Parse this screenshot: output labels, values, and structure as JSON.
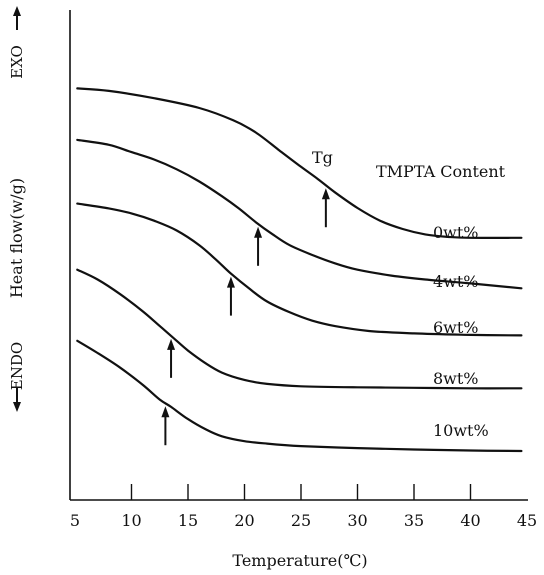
{
  "chart_data": {
    "type": "line",
    "xlabel": "Temperature(℃)",
    "ylabel": "Heat flow(w/g)",
    "xlim": [
      5,
      45
    ],
    "x_ticks": [
      5,
      10,
      15,
      20,
      25,
      30,
      35,
      40,
      45
    ],
    "y_ticks_shown": false,
    "grid": false,
    "legend_title": "TMPTA Content",
    "exo_label": "EXO",
    "endo_label": "ENDO",
    "tg_label": "Tg",
    "series": [
      {
        "name": "0wt%",
        "tg": 27.2,
        "points": [
          [
            5.2,
            0.84
          ],
          [
            8,
            0.835
          ],
          [
            12,
            0.82
          ],
          [
            16,
            0.8
          ],
          [
            19,
            0.775
          ],
          [
            21,
            0.75
          ],
          [
            23,
            0.715
          ],
          [
            25,
            0.68
          ],
          [
            26.5,
            0.655
          ],
          [
            28,
            0.628
          ],
          [
            30,
            0.596
          ],
          [
            32,
            0.57
          ],
          [
            34,
            0.553
          ],
          [
            36,
            0.542
          ],
          [
            38,
            0.537
          ],
          [
            40,
            0.535
          ],
          [
            44.5,
            0.535
          ]
        ]
      },
      {
        "name": "4wt%",
        "tg": 21.2,
        "points": [
          [
            5.2,
            0.735
          ],
          [
            8,
            0.725
          ],
          [
            10,
            0.71
          ],
          [
            12,
            0.695
          ],
          [
            14,
            0.675
          ],
          [
            16,
            0.65
          ],
          [
            18,
            0.62
          ],
          [
            19.5,
            0.595
          ],
          [
            21,
            0.567
          ],
          [
            22.5,
            0.542
          ],
          [
            24,
            0.52
          ],
          [
            26,
            0.5
          ],
          [
            28,
            0.483
          ],
          [
            30,
            0.47
          ],
          [
            33,
            0.458
          ],
          [
            36,
            0.45
          ],
          [
            40,
            0.442
          ],
          [
            44.5,
            0.432
          ]
        ]
      },
      {
        "name": "6wt%",
        "tg": 18.8,
        "points": [
          [
            5.2,
            0.605
          ],
          [
            8,
            0.595
          ],
          [
            10,
            0.585
          ],
          [
            12,
            0.57
          ],
          [
            14,
            0.55
          ],
          [
            16,
            0.52
          ],
          [
            17.5,
            0.49
          ],
          [
            18.8,
            0.462
          ],
          [
            20.5,
            0.43
          ],
          [
            22,
            0.405
          ],
          [
            24,
            0.383
          ],
          [
            26,
            0.366
          ],
          [
            28,
            0.355
          ],
          [
            31,
            0.345
          ],
          [
            35,
            0.34
          ],
          [
            40,
            0.337
          ],
          [
            44.5,
            0.336
          ]
        ]
      },
      {
        "name": "8wt%",
        "tg": 13.5,
        "points": [
          [
            5.2,
            0.47
          ],
          [
            7,
            0.45
          ],
          [
            9,
            0.42
          ],
          [
            11,
            0.385
          ],
          [
            12.5,
            0.355
          ],
          [
            13.5,
            0.335
          ],
          [
            15,
            0.305
          ],
          [
            16.5,
            0.28
          ],
          [
            18,
            0.26
          ],
          [
            20,
            0.245
          ],
          [
            22,
            0.237
          ],
          [
            25,
            0.232
          ],
          [
            30,
            0.23
          ],
          [
            35,
            0.229
          ],
          [
            40,
            0.228
          ],
          [
            44.5,
            0.228
          ]
        ]
      },
      {
        "name": "10wt%",
        "tg": 13.0,
        "points": [
          [
            5.2,
            0.325
          ],
          [
            7,
            0.3
          ],
          [
            9,
            0.27
          ],
          [
            11,
            0.235
          ],
          [
            12.5,
            0.205
          ],
          [
            13.5,
            0.19
          ],
          [
            15,
            0.165
          ],
          [
            16.5,
            0.145
          ],
          [
            18,
            0.13
          ],
          [
            20,
            0.12
          ],
          [
            22,
            0.115
          ],
          [
            25,
            0.11
          ],
          [
            30,
            0.106
          ],
          [
            35,
            0.103
          ],
          [
            40,
            0.101
          ],
          [
            44.5,
            0.1
          ]
        ]
      }
    ]
  }
}
